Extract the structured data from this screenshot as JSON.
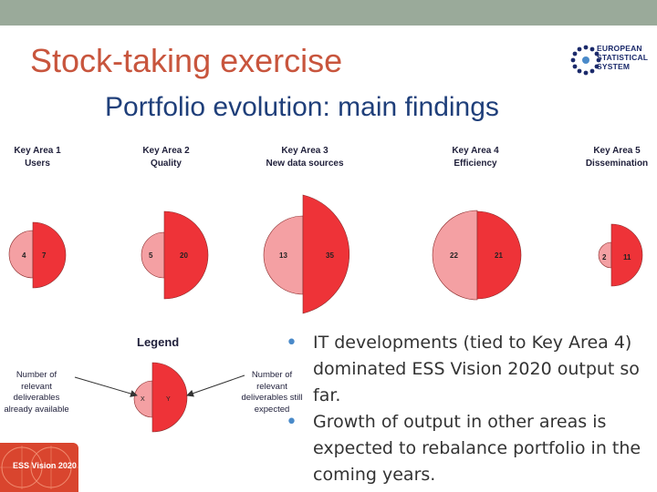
{
  "slide": {
    "title": "Stock-taking exercise",
    "subtitle": "Portfolio evolution: main findings"
  },
  "logo": {
    "lines": [
      "EUROPEAN",
      "STATISTICAL",
      "SYSTEM"
    ]
  },
  "key_areas": [
    {
      "id": "ka1",
      "name": "Key Area 1",
      "topic": "Users",
      "available": 4,
      "expected": 7
    },
    {
      "id": "ka2",
      "name": "Key Area 2",
      "topic": "Quality",
      "available": 5,
      "expected": 20
    },
    {
      "id": "ka3",
      "name": "Key Area 3",
      "topic": "New data sources",
      "available": 13,
      "expected": 35
    },
    {
      "id": "ka4",
      "name": "Key Area 4",
      "topic": "Efficiency",
      "available": 22,
      "expected": 21
    },
    {
      "id": "ka5",
      "name": "Key Area 5",
      "topic": "Dissemination",
      "available": 2,
      "expected": 11
    }
  ],
  "legend": {
    "title": "Legend",
    "left_label": "X",
    "right_label": "Y",
    "left_note": "Number of relevant deliverables already available",
    "right_note": "Number of relevant deliverables still expected"
  },
  "bullets": [
    "IT developments (tied to Key Area 4) dominated ESS Vision 2020 output so far.",
    "Growth of output in other areas is expected to rebalance portfolio in the coming years."
  ],
  "ess_vision_logo": "ESS Vision 2020",
  "colors": {
    "available": "#f4a0a3",
    "expected": "#ee3338",
    "stroke": "#8a2a2a",
    "title": "#c8553d",
    "subtitle": "#1f3f7a"
  }
}
